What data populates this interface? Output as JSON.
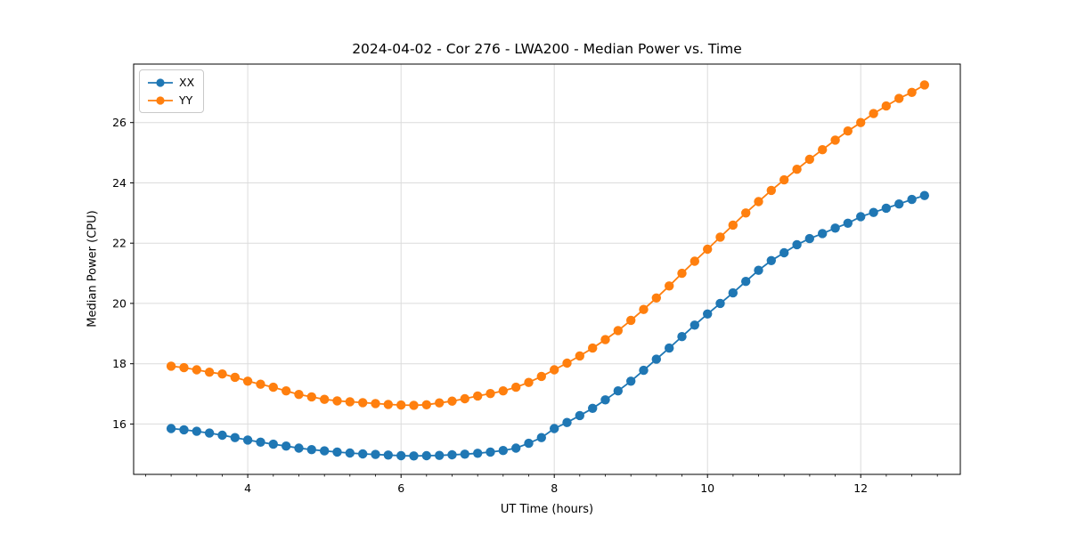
{
  "chart_data": {
    "type": "line",
    "title": "2024-04-02 - Cor 276 - LWA200 - Median Power vs. Time",
    "xlabel": "UT Time (hours)",
    "ylabel": "Median Power (CPU)",
    "legend_position": "upper left",
    "grid": true,
    "marker": "o",
    "xlim": [
      2.51,
      13.3
    ],
    "ylim": [
      14.33,
      27.94
    ],
    "xticks": [
      4,
      6,
      8,
      10,
      12
    ],
    "yticks": [
      16,
      18,
      20,
      22,
      24,
      26
    ],
    "x_minor_tick_step": 0.3333,
    "x": [
      3.0,
      3.167,
      3.333,
      3.5,
      3.667,
      3.833,
      4.0,
      4.167,
      4.333,
      4.5,
      4.667,
      4.833,
      5.0,
      5.167,
      5.333,
      5.5,
      5.667,
      5.833,
      6.0,
      6.167,
      6.333,
      6.5,
      6.667,
      6.833,
      7.0,
      7.167,
      7.333,
      7.5,
      7.667,
      7.833,
      8.0,
      8.167,
      8.333,
      8.5,
      8.667,
      8.833,
      9.0,
      9.167,
      9.333,
      9.5,
      9.667,
      9.833,
      10.0,
      10.167,
      10.333,
      10.5,
      10.667,
      10.833,
      11.0,
      11.167,
      11.333,
      11.5,
      11.667,
      11.833,
      12.0,
      12.167,
      12.333,
      12.5,
      12.667,
      12.833
    ],
    "series": [
      {
        "name": "XX",
        "color": "#1f77b4",
        "values": [
          15.85,
          15.81,
          15.76,
          15.7,
          15.63,
          15.55,
          15.47,
          15.4,
          15.33,
          15.27,
          15.2,
          15.15,
          15.11,
          15.07,
          15.04,
          15.01,
          14.99,
          14.97,
          14.95,
          14.94,
          14.95,
          14.96,
          14.98,
          15.0,
          15.03,
          15.07,
          15.12,
          15.2,
          15.36,
          15.55,
          15.85,
          16.05,
          16.28,
          16.52,
          16.8,
          17.1,
          17.42,
          17.78,
          18.15,
          18.52,
          18.9,
          19.28,
          19.65,
          20.0,
          20.35,
          20.73,
          21.1,
          21.42,
          21.68,
          21.95,
          22.15,
          22.32,
          22.5,
          22.66,
          22.88,
          23.02,
          23.16,
          23.3,
          23.45,
          23.58
        ]
      },
      {
        "name": "YY",
        "color": "#ff7f0e",
        "values": [
          17.92,
          17.87,
          17.8,
          17.72,
          17.66,
          17.55,
          17.42,
          17.32,
          17.22,
          17.1,
          16.98,
          16.9,
          16.82,
          16.77,
          16.74,
          16.71,
          16.68,
          16.65,
          16.63,
          16.62,
          16.64,
          16.7,
          16.76,
          16.84,
          16.93,
          17.01,
          17.1,
          17.22,
          17.38,
          17.58,
          17.8,
          18.02,
          18.26,
          18.52,
          18.8,
          19.1,
          19.44,
          19.8,
          20.18,
          20.58,
          21.0,
          21.4,
          21.8,
          22.2,
          22.6,
          23.0,
          23.38,
          23.75,
          24.1,
          24.45,
          24.78,
          25.1,
          25.42,
          25.72,
          26.0,
          26.3,
          26.55,
          26.8,
          27.0,
          27.25
        ]
      }
    ]
  }
}
